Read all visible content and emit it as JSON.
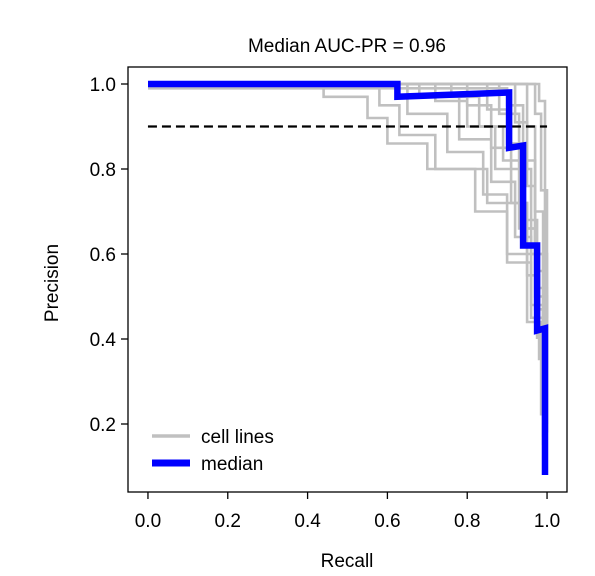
{
  "chart_data": {
    "type": "line",
    "title": "Median AUC-PR = 0.96",
    "xlabel": "Recall",
    "ylabel": "Precision",
    "xlim": [
      -0.05,
      1.05
    ],
    "ylim": [
      0.04,
      1.04
    ],
    "xticks": [
      0.0,
      0.2,
      0.4,
      0.6,
      0.8,
      1.0
    ],
    "xtick_labels": [
      "0.0",
      "0.2",
      "0.4",
      "0.6",
      "0.8",
      "1.0"
    ],
    "yticks": [
      0.2,
      0.4,
      0.6,
      0.8,
      1.0
    ],
    "ytick_labels": [
      "0.2",
      "0.4",
      "0.6",
      "0.8",
      "1.0"
    ],
    "grid": false,
    "legend": {
      "position": "lower-left",
      "entries": [
        {
          "label": "cell lines",
          "color": "#c0c0c0"
        },
        {
          "label": "median",
          "color": "#0000ff"
        }
      ]
    },
    "reference_line": {
      "y": 0.9,
      "style": "dashed",
      "color": "#000000"
    },
    "median_series": {
      "name": "median",
      "color": "#0000ff",
      "x": [
        0.0,
        0.625,
        0.625,
        0.905,
        0.905,
        0.94,
        0.94,
        0.975,
        0.975,
        0.995,
        0.995
      ],
      "y": [
        1.0,
        1.0,
        0.97,
        0.98,
        0.85,
        0.855,
        0.62,
        0.62,
        0.42,
        0.425,
        0.08
      ]
    },
    "cell_lines_series": {
      "name": "cell lines",
      "color": "#c0c0c0",
      "lines": [
        {
          "x": [
            0.0,
            0.44,
            0.44,
            0.55,
            0.55,
            0.6,
            0.6,
            0.7,
            0.7,
            0.85,
            0.85,
            0.95,
            0.95,
            1.0,
            1.0
          ],
          "y": [
            1.0,
            1.0,
            0.97,
            0.97,
            0.92,
            0.92,
            0.86,
            0.86,
            0.8,
            0.8,
            0.72,
            0.72,
            0.6,
            0.6,
            0.45
          ]
        },
        {
          "x": [
            0.0,
            0.58,
            0.58,
            0.63,
            0.63,
            0.72,
            0.72,
            0.82,
            0.82,
            0.9,
            0.9,
            0.96,
            0.96,
            0.99,
            0.99
          ],
          "y": [
            1.0,
            1.0,
            0.95,
            0.95,
            0.88,
            0.88,
            0.8,
            0.8,
            0.7,
            0.7,
            0.58,
            0.58,
            0.45,
            0.45,
            0.28
          ]
        },
        {
          "x": [
            0.0,
            0.72,
            0.72,
            0.8,
            0.8,
            0.87,
            0.87,
            0.93,
            0.93,
            0.97,
            0.97,
            1.0,
            1.0
          ],
          "y": [
            1.0,
            1.0,
            0.96,
            0.96,
            0.9,
            0.9,
            0.8,
            0.8,
            0.66,
            0.66,
            0.5,
            0.5,
            0.33
          ]
        },
        {
          "x": [
            0.0,
            0.8,
            0.8,
            0.86,
            0.86,
            0.91,
            0.91,
            0.95,
            0.95,
            0.98,
            0.98
          ],
          "y": [
            1.0,
            1.0,
            0.95,
            0.95,
            0.85,
            0.85,
            0.72,
            0.72,
            0.55,
            0.55,
            0.35
          ]
        },
        {
          "x": [
            0.0,
            0.88,
            0.88,
            0.93,
            0.93,
            0.96,
            0.96,
            0.99,
            0.99
          ],
          "y": [
            1.0,
            1.0,
            0.93,
            0.93,
            0.8,
            0.8,
            0.6,
            0.6,
            0.3
          ]
        },
        {
          "x": [
            0.0,
            0.92,
            0.92,
            0.95,
            0.95,
            0.97,
            0.97,
            1.0,
            1.0
          ],
          "y": [
            1.0,
            1.0,
            0.91,
            0.91,
            0.76,
            0.76,
            0.52,
            0.52,
            0.2
          ]
        },
        {
          "x": [
            0.0,
            0.65,
            0.65,
            0.75,
            0.75,
            0.84,
            0.84,
            0.9,
            0.9,
            0.95,
            0.95,
            0.985,
            0.985
          ],
          "y": [
            1.0,
            1.0,
            0.93,
            0.93,
            0.84,
            0.84,
            0.74,
            0.74,
            0.6,
            0.6,
            0.44,
            0.44,
            0.22
          ]
        },
        {
          "x": [
            0.0,
            0.95,
            0.95,
            0.97,
            0.97,
            0.99,
            0.99
          ],
          "y": [
            1.0,
            1.0,
            0.9,
            0.9,
            0.7,
            0.7,
            0.15
          ]
        },
        {
          "x": [
            0.0,
            0.97,
            0.97,
            0.985,
            0.985,
            1.0,
            1.0
          ],
          "y": [
            1.0,
            1.0,
            0.93,
            0.93,
            0.75,
            0.75,
            0.18
          ]
        },
        {
          "x": [
            0.0,
            0.9,
            0.9,
            0.94,
            0.94,
            0.97,
            0.97,
            0.995,
            0.995
          ],
          "y": [
            0.99,
            0.99,
            0.95,
            0.95,
            0.82,
            0.82,
            0.56,
            0.56,
            0.25
          ]
        },
        {
          "x": [
            0.0,
            0.76,
            0.76,
            0.83,
            0.83,
            0.89,
            0.89,
            0.94,
            0.94,
            0.975,
            0.975
          ],
          "y": [
            1.0,
            1.0,
            0.97,
            0.97,
            0.9,
            0.9,
            0.82,
            0.82,
            0.68,
            0.68,
            0.4
          ]
        },
        {
          "x": [
            0.0,
            0.98,
            0.98,
            0.995,
            0.995
          ],
          "y": [
            1.0,
            1.0,
            0.96,
            0.96,
            0.5
          ]
        },
        {
          "x": [
            0.0,
            0.85,
            0.85,
            0.9,
            0.9,
            0.94,
            0.94,
            0.97,
            0.97,
            0.99,
            0.99
          ],
          "y": [
            1.0,
            1.0,
            0.94,
            0.94,
            0.86,
            0.86,
            0.66,
            0.66,
            0.47,
            0.47,
            0.17
          ]
        },
        {
          "x": [
            0.0,
            0.68,
            0.68,
            0.78,
            0.78,
            0.86,
            0.86,
            0.92,
            0.92,
            0.96,
            0.96,
            0.99,
            0.99
          ],
          "y": [
            1.0,
            1.0,
            0.97,
            0.97,
            0.87,
            0.87,
            0.77,
            0.77,
            0.64,
            0.64,
            0.48,
            0.48,
            0.26
          ]
        }
      ]
    }
  }
}
